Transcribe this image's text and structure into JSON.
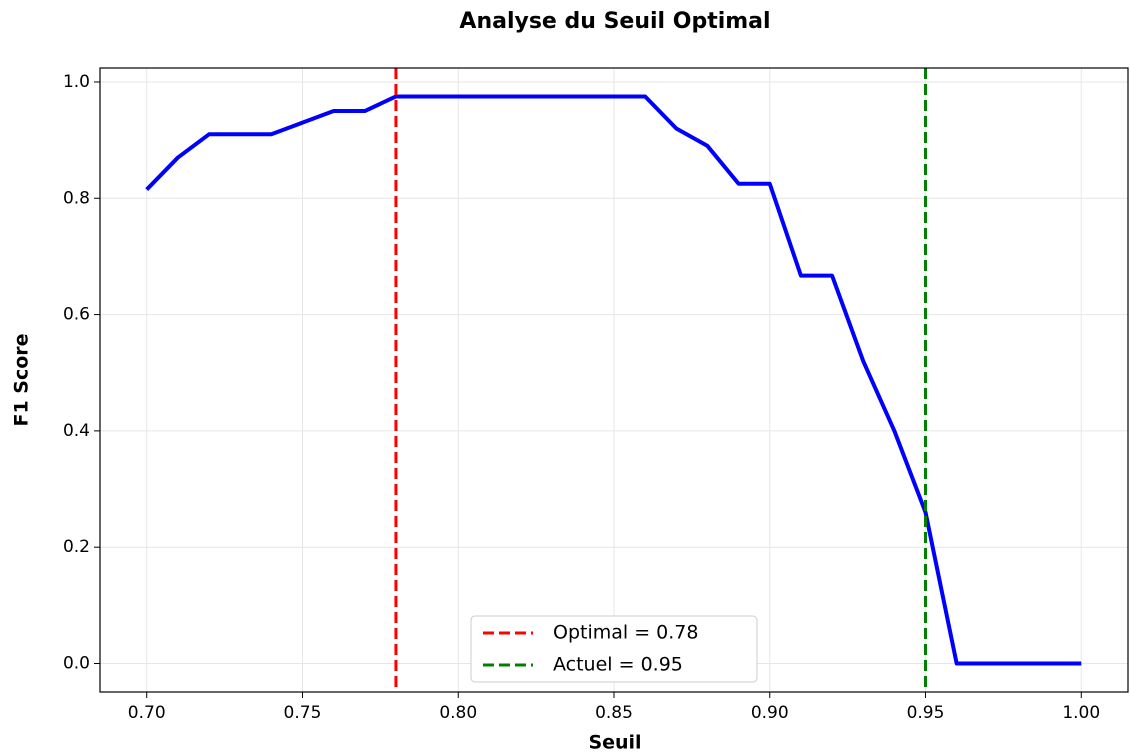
{
  "chart_data": {
    "type": "line",
    "title": "Analyse du Seuil Optimal",
    "xlabel": "Seuil",
    "ylabel": "F1 Score",
    "x": [
      0.7,
      0.71,
      0.72,
      0.73,
      0.74,
      0.75,
      0.76,
      0.77,
      0.78,
      0.79,
      0.8,
      0.81,
      0.82,
      0.83,
      0.84,
      0.85,
      0.86,
      0.87,
      0.88,
      0.89,
      0.9,
      0.91,
      0.92,
      0.93,
      0.94,
      0.95,
      0.96,
      0.97,
      0.98,
      0.99,
      1.0
    ],
    "series": [
      {
        "color": "#0000ff",
        "values": [
          0.815,
          0.87,
          0.91,
          0.91,
          0.91,
          0.93,
          0.95,
          0.95,
          0.975,
          0.975,
          0.975,
          0.975,
          0.975,
          0.975,
          0.975,
          0.975,
          0.975,
          0.92,
          0.89,
          0.825,
          0.825,
          0.667,
          0.667,
          0.52,
          0.4,
          0.26,
          0,
          0,
          0,
          0,
          0
        ]
      }
    ],
    "vlines": [
      {
        "value": 0.78,
        "label": "Optimal = 0.78",
        "color": "#ff0000"
      },
      {
        "value": 0.95,
        "label": "Actuel = 0.95",
        "color": "#008000"
      }
    ],
    "xlim": [
      0.685,
      1.015
    ],
    "ylim": [
      -0.049,
      1.024
    ],
    "xticks": [
      {
        "value": 0.7,
        "label": "0.70"
      },
      {
        "value": 0.75,
        "label": "0.75"
      },
      {
        "value": 0.8,
        "label": "0.80"
      },
      {
        "value": 0.85,
        "label": "0.85"
      },
      {
        "value": 0.9,
        "label": "0.90"
      },
      {
        "value": 0.95,
        "label": "0.95"
      },
      {
        "value": 1.0,
        "label": "1.00"
      }
    ],
    "yticks": [
      {
        "value": 0,
        "label": "0.0"
      },
      {
        "value": 0.2,
        "label": "0.2"
      },
      {
        "value": 0.4,
        "label": "0.4"
      },
      {
        "value": 0.6,
        "label": "0.6"
      },
      {
        "value": 0.8,
        "label": "0.8"
      },
      {
        "value": 1.0,
        "label": "1.0"
      }
    ],
    "grid": true,
    "legend": "lower center"
  }
}
